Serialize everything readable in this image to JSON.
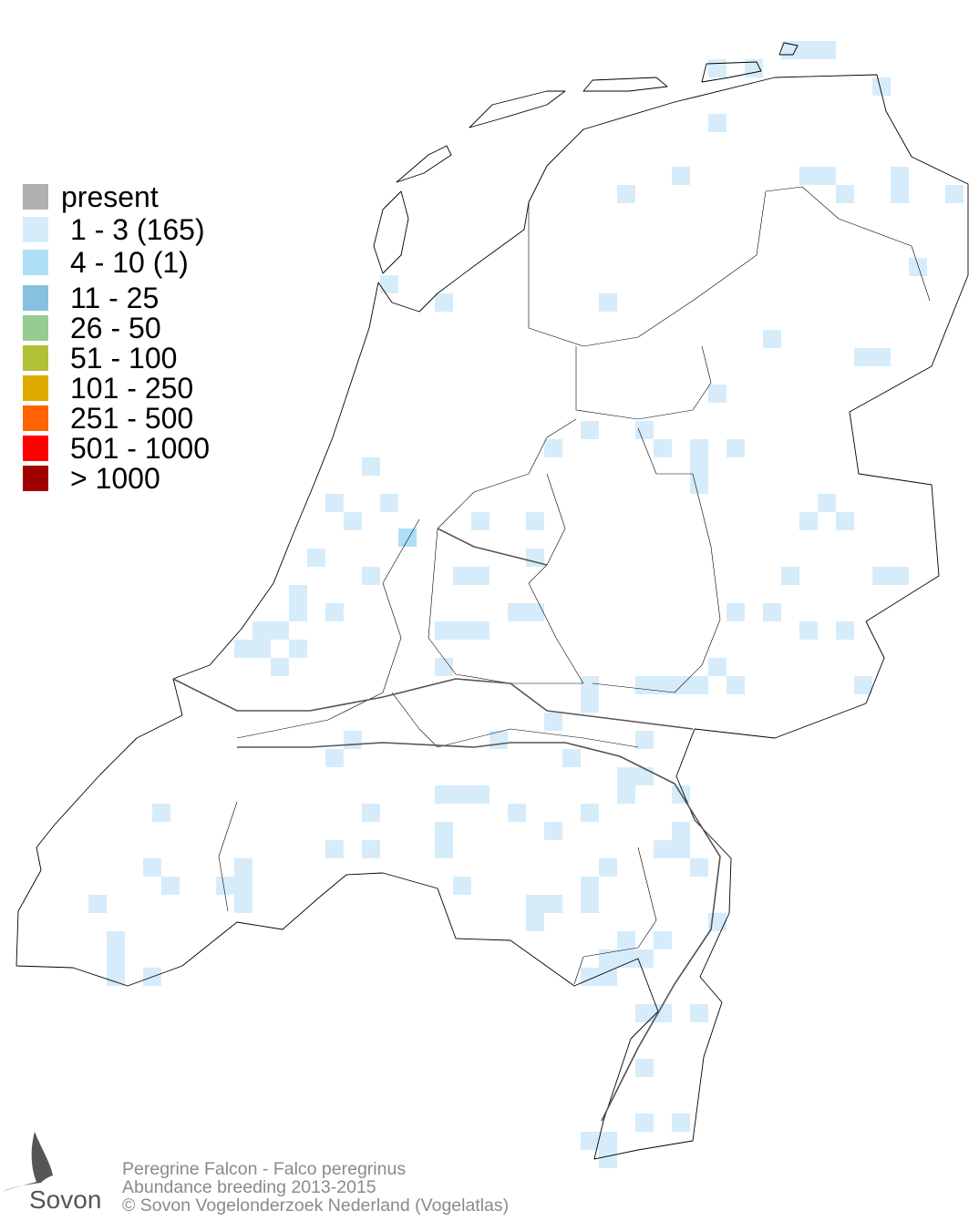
{
  "legend": {
    "items": [
      {
        "label": "present",
        "color": "#b0b0b0"
      },
      {
        "label": "1 - 3 (165)",
        "color": "#d6ecfb"
      },
      {
        "label": "4 - 10 (1)",
        "color": "#addff7"
      },
      {
        "label": "11 - 25",
        "color": "#86c2de"
      },
      {
        "label": "26 - 50",
        "color": "#96cb91"
      },
      {
        "label": "51 - 100",
        "color": "#b1c136"
      },
      {
        "label": "101 - 250",
        "color": "#e0ab00"
      },
      {
        "label": "251 - 500",
        "color": "#ff6400"
      },
      {
        "label": "501 - 1000",
        "color": "#ff0000"
      },
      {
        "label": "> 1000",
        "color": "#a00000"
      }
    ]
  },
  "footer": {
    "species": "Peregrine Falcon - Falco peregrinus",
    "subtitle": "Abundance breeding 2013-2015",
    "copyright": "© Sovon Vogelonderzoek Nederland (Vogelatlas)"
  },
  "logo": {
    "text": "Sovon"
  }
}
